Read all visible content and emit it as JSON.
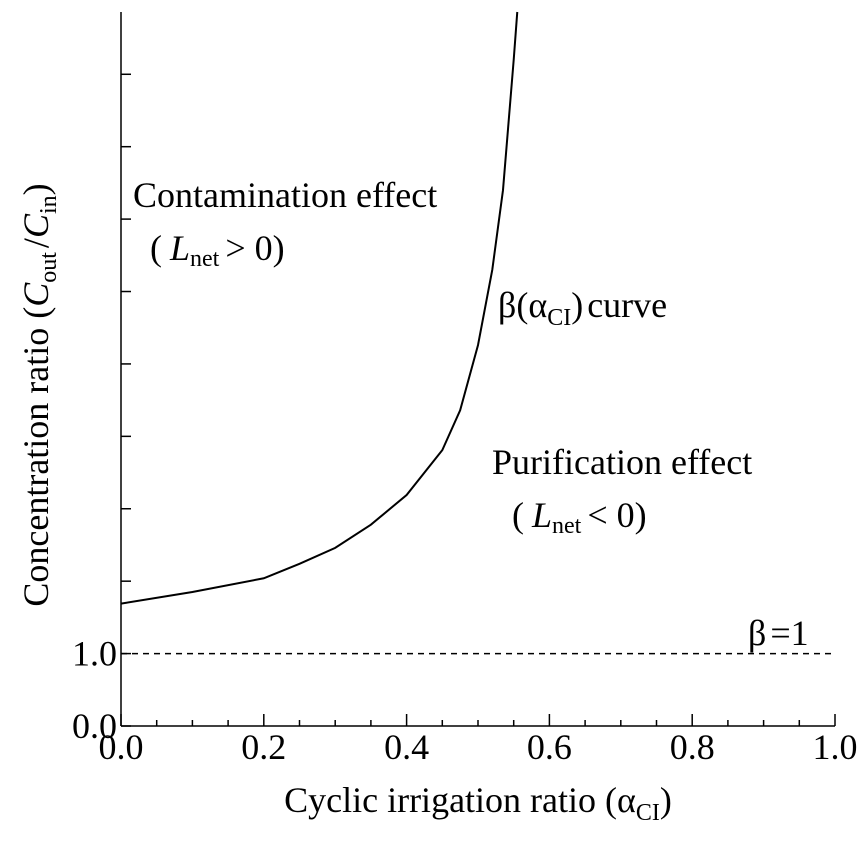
{
  "chart_data": {
    "type": "line",
    "x_label": [
      "Cyclic irrigation ratio (",
      "α",
      "CI",
      ")"
    ],
    "y_label": [
      "Concentration ratio (",
      "C",
      "out",
      "/",
      "C",
      "in",
      ")"
    ],
    "x": [
      0,
      0.1,
      0.2,
      0.25,
      0.3,
      0.35,
      0.4,
      0.45,
      0.475,
      0.5,
      0.52,
      0.535,
      0.55,
      0.555
    ],
    "series": [
      {
        "color": "#000000",
        "values": [
          1.69,
          1.85,
          2.04,
          2.24,
          2.46,
          2.78,
          3.19,
          3.81,
          4.36,
          5.26,
          6.3,
          7.4,
          9.2,
          9.86
        ]
      }
    ],
    "xlim": [
      0,
      1
    ],
    "ylim": [
      0,
      9.86
    ],
    "xticks": [
      {
        "value": 0,
        "label": "0.0"
      },
      {
        "value": 0.2,
        "label": "0.2"
      },
      {
        "value": 0.4,
        "label": "0.4"
      },
      {
        "value": 0.6,
        "label": "0.6"
      },
      {
        "value": 0.8,
        "label": "0.8"
      },
      {
        "value": 1,
        "label": "1.0"
      }
    ],
    "x_minor_ticks": [
      0.05,
      0.1,
      0.15,
      0.25,
      0.3,
      0.35,
      0.45,
      0.5,
      0.55,
      0.65,
      0.7,
      0.75,
      0.85,
      0.9,
      0.95
    ],
    "yticks": [
      {
        "value": 0,
        "label": "0.0"
      },
      {
        "value": 1,
        "label": "1.0"
      }
    ],
    "y_minor_ticks": [
      2,
      3,
      4,
      5,
      6,
      7,
      8,
      9
    ],
    "reference_line": {
      "value": 1,
      "label": [
        "β",
        "=1"
      ]
    },
    "annotations": {
      "contamination": "Contamination effect",
      "contamination_condition": [
        "(",
        "L",
        "net",
        "> 0)"
      ],
      "curve": [
        "β",
        "(",
        "α",
        "CI",
        ")",
        "curve"
      ],
      "purification": "Purification effect",
      "purification_condition": [
        "(",
        "L",
        "net",
        "< 0)"
      ]
    }
  }
}
